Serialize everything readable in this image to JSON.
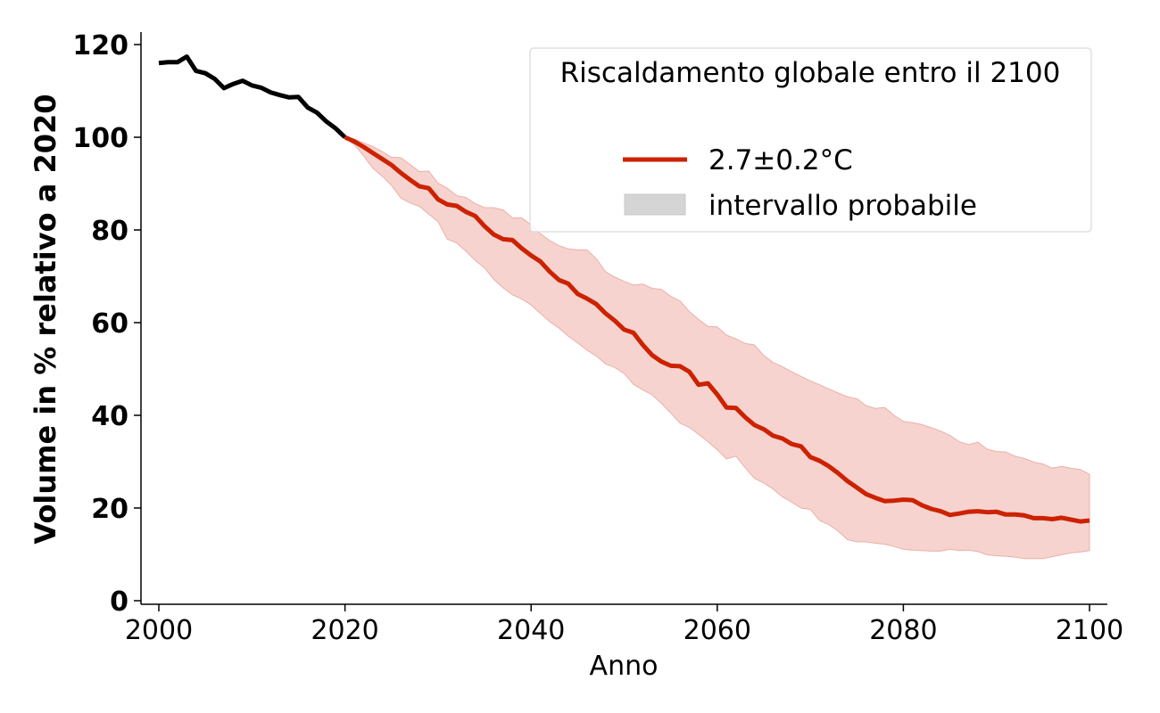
{
  "chart_data": {
    "type": "line",
    "title": "",
    "xlabel": "Anno",
    "ylabel": "Volume in % relativo a 2020",
    "xlim": [
      2000,
      2100
    ],
    "ylim": [
      0,
      120
    ],
    "xticks": [
      2000,
      2020,
      2040,
      2060,
      2080,
      2100
    ],
    "yticks": [
      0,
      20,
      40,
      60,
      80,
      100,
      120
    ],
    "grid": false,
    "legend": {
      "title": "Riscaldamento globale entro il 2100",
      "placement": "top-right",
      "entries": [
        {
          "label": "2.7±0.2°C",
          "kind": "line",
          "color": "#cc2200"
        },
        {
          "label": "intervallo probabile",
          "kind": "patch",
          "color": "#d5d5d5"
        }
      ]
    },
    "historical": {
      "color": "#000000",
      "x": [
        2000,
        2001,
        2002,
        2003,
        2004,
        2005,
        2006,
        2007,
        2008,
        2009,
        2010,
        2011,
        2012,
        2013,
        2014,
        2015,
        2016,
        2017,
        2018,
        2019,
        2020
      ],
      "y": [
        116,
        116.2,
        116.2,
        117.4,
        114.3,
        113.8,
        112.6,
        110.6,
        111.5,
        112.2,
        111.2,
        110.7,
        109.7,
        109.1,
        108.6,
        108.7,
        106.4,
        105.3,
        103.4,
        101.9,
        100
      ]
    },
    "projection": {
      "name": "2.7±0.2°C",
      "color": "#cc2200",
      "band_color": "#f6d3cf",
      "x": [
        2020,
        2021,
        2022,
        2023,
        2024,
        2025,
        2026,
        2027,
        2028,
        2029,
        2030,
        2031,
        2032,
        2033,
        2034,
        2035,
        2036,
        2037,
        2038,
        2039,
        2040,
        2041,
        2042,
        2043,
        2044,
        2045,
        2046,
        2047,
        2048,
        2049,
        2050,
        2051,
        2052,
        2053,
        2054,
        2055,
        2056,
        2057,
        2058,
        2059,
        2060,
        2061,
        2062,
        2063,
        2064,
        2065,
        2066,
        2067,
        2068,
        2069,
        2070,
        2071,
        2072,
        2073,
        2074,
        2075,
        2076,
        2077,
        2078,
        2079,
        2080,
        2081,
        2082,
        2083,
        2084,
        2085,
        2086,
        2087,
        2088,
        2089,
        2090,
        2091,
        2092,
        2093,
        2094,
        2095,
        2096,
        2097,
        2098,
        2099,
        2100
      ],
      "mean": [
        100,
        99.1,
        97.9,
        96.6,
        95.3,
        94,
        92.3,
        90.8,
        89.4,
        89,
        86.6,
        85.5,
        85.2,
        83.9,
        83,
        80.8,
        79,
        78,
        77.8,
        76,
        74.5,
        73.2,
        71,
        69.2,
        68.4,
        66.2,
        65.2,
        64,
        62,
        60.4,
        58.5,
        57.8,
        55.2,
        53,
        51.6,
        50.7,
        50.6,
        49.4,
        46.6,
        46.9,
        44.5,
        41.7,
        41.6,
        39.6,
        37.9,
        37,
        35.6,
        35,
        33.8,
        33.3,
        31,
        30.2,
        29,
        27.5,
        25.8,
        24.4,
        23,
        22.2,
        21.5,
        21.6,
        21.8,
        21.7,
        20.6,
        19.8,
        19.3,
        18.5,
        18.8,
        19.2,
        19.3,
        19.1,
        19.2,
        18.6,
        18.6,
        18.4,
        17.8,
        17.8,
        17.6,
        17.9,
        17.5,
        17.1,
        17.3
      ],
      "upper": [
        100,
        99.6,
        98.8,
        98,
        96.9,
        95.7,
        95.6,
        94.1,
        92.6,
        92.7,
        90.1,
        89,
        87.4,
        87,
        85.7,
        84.8,
        84.8,
        84.3,
        82.6,
        82.6,
        81.1,
        79.2,
        77.7,
        76.6,
        75.9,
        75.7,
        75.7,
        73.8,
        71,
        69.8,
        68.9,
        68.1,
        68.3,
        67.4,
        67.2,
        65.7,
        64.7,
        62.4,
        60.7,
        59.2,
        59.1,
        57.3,
        56.5,
        55.5,
        55.2,
        52.9,
        51.4,
        50.5,
        49.4,
        48.4,
        47.4,
        46.6,
        45.7,
        44.8,
        44,
        43.6,
        42.1,
        41.5,
        41.7,
        40,
        38.7,
        38.4,
        38,
        37.3,
        36.6,
        35.7,
        34.3,
        33.7,
        34.2,
        32.7,
        32.2,
        32.1,
        31.2,
        30.7,
        29.9,
        29.5,
        28.6,
        29,
        28.6,
        28.3,
        27.3
      ],
      "lower": [
        100,
        98.4,
        96,
        93.3,
        91.6,
        89.6,
        86.9,
        85.8,
        85.1,
        83.4,
        81.8,
        78,
        77.2,
        75.4,
        73.4,
        71.8,
        69.3,
        67.5,
        66,
        65.1,
        63.8,
        62,
        60.2,
        58.8,
        57.1,
        55.6,
        54.1,
        52.8,
        51.1,
        50.3,
        49,
        46.7,
        45.5,
        44.4,
        42.6,
        40.5,
        38.3,
        37.4,
        35.9,
        34.3,
        32.6,
        30.6,
        31.2,
        28.7,
        26.4,
        25.4,
        24.1,
        22.4,
        21.3,
        20,
        19.7,
        17.3,
        16.4,
        15,
        13.2,
        12.7,
        12.7,
        12.4,
        12.2,
        11.7,
        11.1,
        10.9,
        10.8,
        10.7,
        10.7,
        11.1,
        10.8,
        10.9,
        10.6,
        9.9,
        9.7,
        9.6,
        9.4,
        9.1,
        9.1,
        9.1,
        9.5,
        9.9,
        10.3,
        10.5,
        10.8
      ]
    }
  }
}
